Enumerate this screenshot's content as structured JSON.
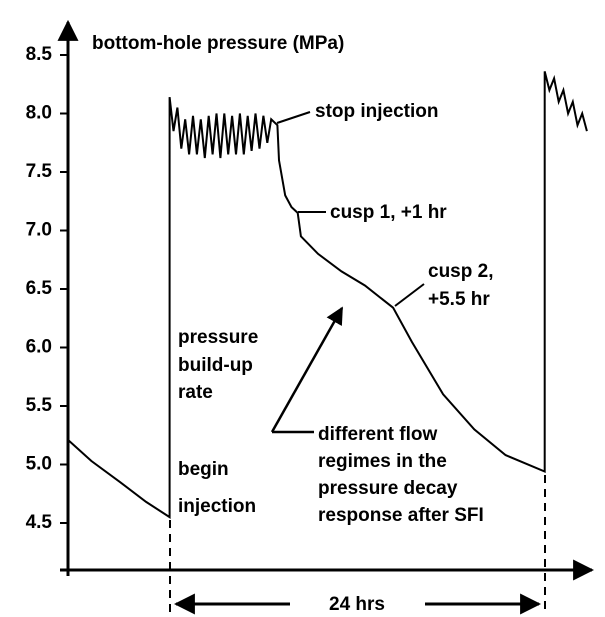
{
  "chart_data": {
    "type": "line",
    "title": "bottom-hole pressure (MPa)",
    "ylim": [
      4.5,
      8.5
    ],
    "yticks": [
      4.5,
      {
        "value": 5,
        "label": "5.0"
      },
      5.5,
      {
        "value": 6,
        "label": "6.0"
      },
      6.5,
      {
        "value": 7,
        "label": "7.0"
      },
      7.5,
      {
        "value": 8,
        "label": "8.0"
      },
      8.5
    ],
    "xlim": [
      0,
      33.4
    ],
    "x": [
      0,
      1.5,
      3.33,
      5,
      6.5,
      6.5,
      6.75,
      7.0,
      7.25,
      7.5,
      7.75,
      8.0,
      8.25,
      8.5,
      8.75,
      9.0,
      9.25,
      9.5,
      9.75,
      10.0,
      10.25,
      10.5,
      10.75,
      11.0,
      11.25,
      11.5,
      11.75,
      12.0,
      12.25,
      12.5,
      12.75,
      13.0,
      13.4,
      13.5,
      13.9,
      14.3,
      14.7,
      14.9,
      16,
      17.5,
      19,
      20.8,
      22,
      24,
      26,
      28,
      30.5,
      30.5,
      30.8,
      31.1,
      31.4,
      31.7,
      32.0,
      32.3,
      32.6,
      32.9,
      33.2
    ],
    "series": [
      {
        "color": "#000000",
        "values": [
          5.21,
          5.03,
          4.85,
          4.68,
          4.55,
          8.14,
          7.85,
          8.05,
          7.7,
          7.95,
          7.65,
          7.98,
          7.65,
          7.95,
          7.62,
          7.98,
          7.65,
          8.0,
          7.62,
          8.0,
          7.65,
          7.98,
          7.65,
          8.0,
          7.65,
          7.98,
          7.68,
          8.0,
          7.7,
          7.98,
          7.75,
          7.95,
          7.9,
          7.6,
          7.3,
          7.2,
          7.15,
          6.95,
          6.8,
          6.65,
          6.53,
          6.34,
          6.05,
          5.6,
          5.3,
          5.08,
          4.94,
          8.36,
          8.2,
          8.3,
          8.1,
          8.2,
          8.0,
          8.1,
          7.9,
          8.0,
          7.85
        ]
      }
    ],
    "annotations": [
      "stop injection",
      "cusp 1, +1 hr",
      "cusp 2,",
      "+5.5 hr",
      "pressure",
      "build-up",
      "rate",
      "begin",
      "injection",
      "different flow",
      "regimes in the",
      "pressure decay",
      "response after SFI",
      "24 hrs"
    ]
  }
}
